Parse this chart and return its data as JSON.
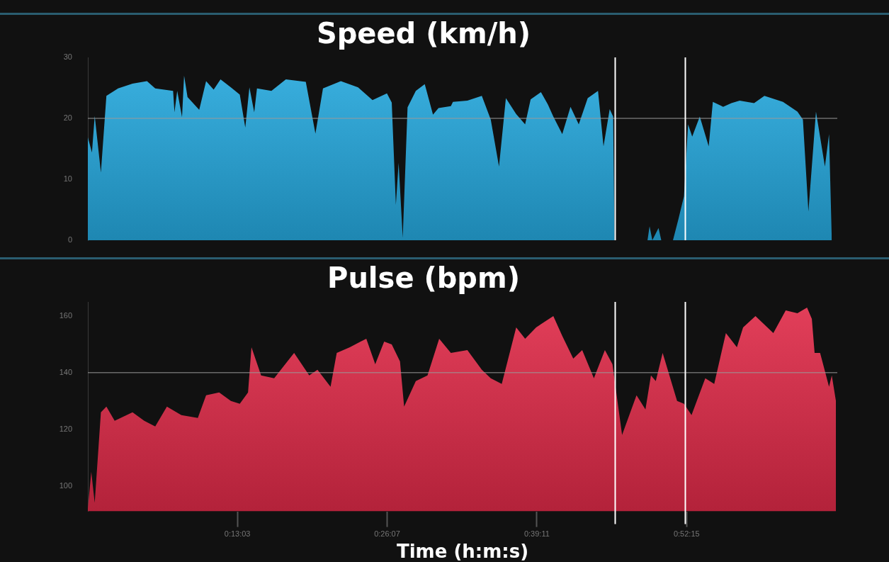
{
  "chart_data": [
    {
      "type": "area",
      "title": "Speed (km/h)",
      "tick_labels": "y",
      "xlim": [
        0,
        1.09
      ],
      "ylim": [
        0,
        30
      ],
      "yticks": [
        0,
        10,
        20,
        30
      ],
      "ref_lines": [
        {
          "axis": "y",
          "value": 20,
          "color": "#9a9a9a"
        },
        {
          "axis": "x",
          "value": 0.767,
          "color": "#ffffff"
        },
        {
          "axis": "x",
          "value": 0.869,
          "color": "#ffffff"
        }
      ],
      "series": [
        {
          "color": "#25a9df",
          "x": [
            0,
            0.006,
            0.01,
            0.019,
            0.027,
            0.044,
            0.065,
            0.086,
            0.098,
            0.124,
            0.126,
            0.13,
            0.137,
            0.14,
            0.145,
            0.162,
            0.172,
            0.183,
            0.193,
            0.208,
            0.221,
            0.229,
            0.235,
            0.242,
            0.246,
            0.267,
            0.288,
            0.317,
            0.331,
            0.342,
            0.368,
            0.393,
            0.414,
            0.435,
            0.442,
            0.448,
            0.452,
            0.458,
            0.465,
            0.477,
            0.49,
            0.502,
            0.51,
            0.528,
            0.531,
            0.552,
            0.573,
            0.586,
            0.598,
            0.608,
            0.623,
            0.636,
            0.644,
            0.659,
            0.669,
            0.677,
            0.69,
            0.702,
            0.714,
            0.727,
            0.742,
            0.75,
            0.759,
            0.764,
            0.766,
            0.814,
            0.817,
            0.821,
            0.83,
            0.834,
            0.851,
            0.859,
            0.867,
            0.873,
            0.879,
            0.89,
            0.903,
            0.909,
            0.924,
            0.936,
            0.948,
            0.969,
            0.984,
            1.011,
            1.032,
            1.04,
            1.048,
            1.059,
            1.072,
            1.078,
            1.082
          ],
          "values": [
            16.9,
            14.4,
            20.4,
            11.1,
            23.7,
            24.9,
            25.7,
            26.1,
            24.9,
            24.5,
            21.0,
            24.5,
            20.2,
            27.0,
            23.5,
            21.4,
            26.1,
            24.7,
            26.4,
            25.1,
            23.9,
            18.5,
            25.1,
            21.0,
            24.9,
            24.5,
            26.4,
            26.0,
            17.5,
            24.9,
            26.1,
            25.1,
            23.0,
            24.1,
            22.6,
            5.8,
            12.7,
            0.4,
            21.8,
            24.5,
            25.6,
            20.6,
            21.7,
            22.0,
            22.7,
            22.9,
            23.7,
            19.8,
            12.1,
            23.3,
            20.7,
            19.0,
            23.1,
            24.3,
            22.3,
            20.3,
            17.4,
            21.9,
            19.0,
            23.3,
            24.5,
            15.4,
            21.5,
            20.3,
            0,
            0,
            2.3,
            0,
            2.0,
            0,
            0,
            3.5,
            7.2,
            19.0,
            17.0,
            20.3,
            15.4,
            22.7,
            21.9,
            22.5,
            22.9,
            22.5,
            23.7,
            22.7,
            21.1,
            19.8,
            4.7,
            21.1,
            12.1,
            17.4,
            0
          ]
        }
      ]
    },
    {
      "type": "area",
      "title": "Pulse (bpm)",
      "xlabel": "Time (h:m:s)",
      "xlim": [
        0,
        1.09
      ],
      "xticks": [
        {
          "value": 0.2175,
          "label": "0:13:03"
        },
        {
          "value": 0.43528,
          "label": "0:26:07"
        },
        {
          "value": 0.65306,
          "label": "0:39:11"
        },
        {
          "value": 0.87083,
          "label": "0:52:15"
        }
      ],
      "ylim": [
        91,
        165
      ],
      "yticks": [
        100,
        120,
        140,
        160
      ],
      "ref_lines": [
        {
          "axis": "y",
          "value": 140,
          "color": "#9a9a9a"
        },
        {
          "axis": "x",
          "value": 0.767,
          "color": "#ffffff"
        },
        {
          "axis": "x",
          "value": 0.869,
          "color": "#ffffff"
        }
      ],
      "series": [
        {
          "color": "#e02a48",
          "x": [
            0,
            0.005,
            0.01,
            0.019,
            0.027,
            0.039,
            0.065,
            0.082,
            0.098,
            0.115,
            0.136,
            0.16,
            0.172,
            0.191,
            0.208,
            0.221,
            0.233,
            0.238,
            0.252,
            0.271,
            0.3,
            0.322,
            0.334,
            0.353,
            0.362,
            0.381,
            0.405,
            0.418,
            0.431,
            0.442,
            0.454,
            0.46,
            0.477,
            0.494,
            0.511,
            0.528,
            0.552,
            0.573,
            0.586,
            0.602,
            0.623,
            0.636,
            0.652,
            0.677,
            0.69,
            0.706,
            0.719,
            0.736,
            0.752,
            0.763,
            0.777,
            0.798,
            0.811,
            0.819,
            0.826,
            0.836,
            0.857,
            0.867,
            0.878,
            0.898,
            0.911,
            0.928,
            0.944,
            0.953,
            0.971,
            0.997,
            1.015,
            1.032,
            1.046,
            1.053,
            1.057,
            1.065,
            1.078,
            1.082,
            1.088
          ],
          "values": [
            92,
            105,
            94,
            126,
            128,
            123,
            126,
            123,
            121,
            128,
            125,
            124,
            132,
            133,
            130,
            129,
            133,
            149,
            139,
            138,
            147,
            139,
            141,
            135,
            147,
            149,
            152,
            143,
            151,
            150,
            144,
            128,
            137,
            139,
            152,
            147,
            148,
            141,
            138,
            136,
            156,
            152,
            156,
            160,
            153,
            145,
            148,
            138,
            148,
            143,
            118,
            132,
            127,
            139,
            137,
            147,
            130,
            129,
            125,
            138,
            136,
            154,
            149,
            156,
            160,
            154,
            162,
            161,
            163,
            159,
            147,
            147,
            135,
            139,
            130
          ]
        }
      ]
    }
  ]
}
